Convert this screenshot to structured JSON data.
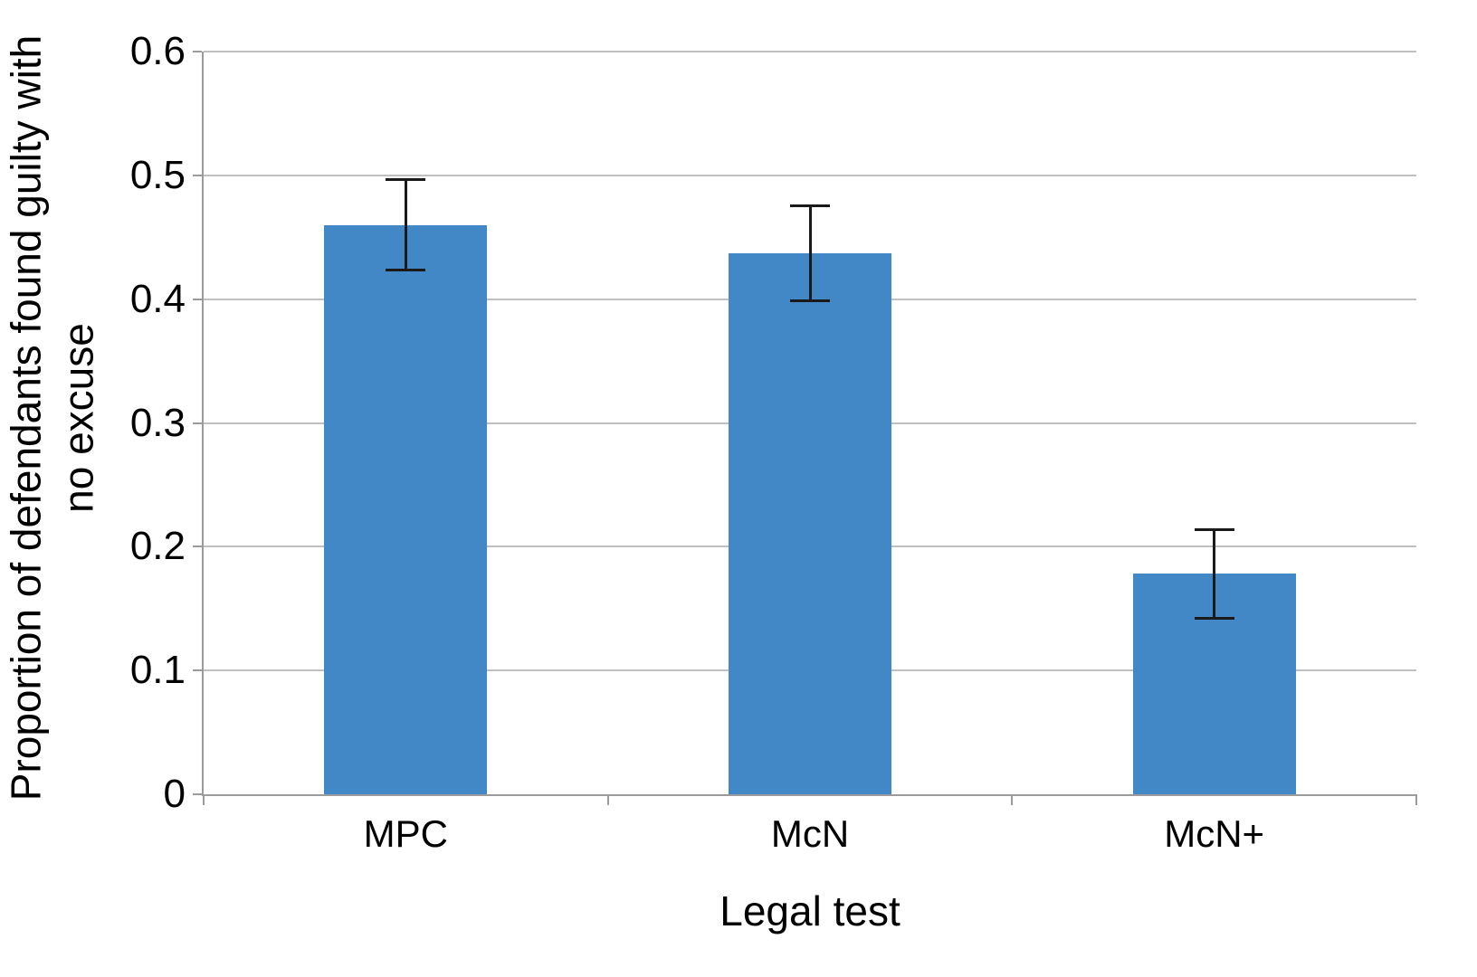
{
  "chart_data": {
    "type": "bar",
    "categories": [
      "MPC",
      "McN",
      "McN+"
    ],
    "values": [
      0.46,
      0.437,
      0.178
    ],
    "error_bars": [
      0.037,
      0.039,
      0.036
    ],
    "title": "",
    "xlabel": "Legal test",
    "ylabel": "Proportion of defendants found guilty with\nno excuse",
    "ylim": [
      0,
      0.6
    ],
    "ytick_step": 0.1,
    "ytick_labels": [
      "0",
      "0.1",
      "0.2",
      "0.3",
      "0.4",
      "0.5",
      "0.6"
    ],
    "grid": true,
    "legend_position": "none",
    "colors": {
      "bar": "#4288C7",
      "gridline": "#BFBFBF",
      "axis": "#9B9B9B",
      "error": "#1A1A1A",
      "text": "#000000",
      "background": "#FFFFFF"
    }
  }
}
